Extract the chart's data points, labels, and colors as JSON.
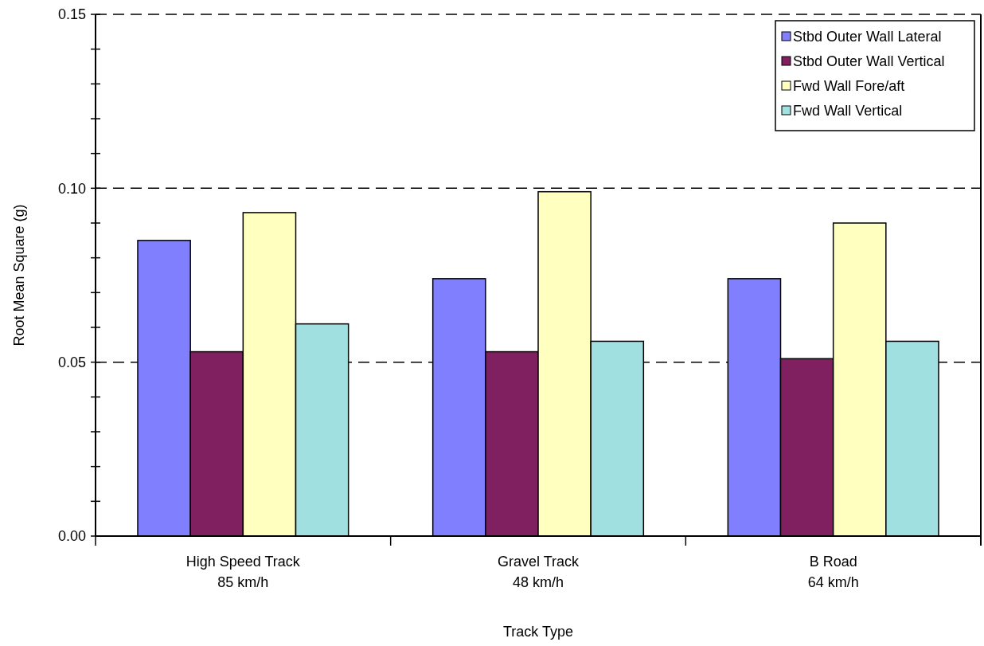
{
  "chart_data": {
    "type": "bar",
    "xlabel": "Track Type",
    "ylabel": "Root Mean Square (g)",
    "categories": [
      "High Speed Track\n85 km/h",
      "Gravel Track\n48 km/h",
      "B Road\n64 km/h"
    ],
    "series": [
      {
        "name": "Stbd Outer Wall Lateral",
        "color": "#8080ff",
        "values": [
          0.085,
          0.074,
          0.074
        ]
      },
      {
        "name": "Stbd Outer Wall Vertical",
        "color": "#802060",
        "values": [
          0.053,
          0.053,
          0.051
        ]
      },
      {
        "name": "Fwd Wall Fore/aft",
        "color": "#ffffc0",
        "values": [
          0.093,
          0.099,
          0.09
        ]
      },
      {
        "name": "Fwd Wall Vertical",
        "color": "#a0e0e0",
        "values": [
          0.061,
          0.056,
          0.056
        ]
      }
    ],
    "ylim": [
      0,
      0.15
    ],
    "yticks": [
      "0.00",
      {
        "value": 0.01,
        "label": null
      },
      {
        "value": 0.02,
        "label": null
      },
      {
        "value": 0.03,
        "label": null
      },
      {
        "value": 0.04,
        "label": null
      },
      {
        "value": 0.05,
        "label": "0.05"
      },
      {
        "value": 0.06,
        "label": null
      },
      {
        "value": 0.07,
        "label": null
      },
      {
        "value": 0.08,
        "label": null
      },
      {
        "value": 0.09,
        "label": null
      },
      {
        "value": 0.1,
        "label": "0.10"
      },
      {
        "value": 0.11,
        "label": null
      },
      {
        "value": 0.12,
        "label": null
      },
      {
        "value": 0.13,
        "label": null
      },
      {
        "value": 0.14,
        "label": null
      },
      {
        "value": 0.15,
        "label": "0.15"
      }
    ],
    "grid": "y",
    "legend": "top right"
  }
}
